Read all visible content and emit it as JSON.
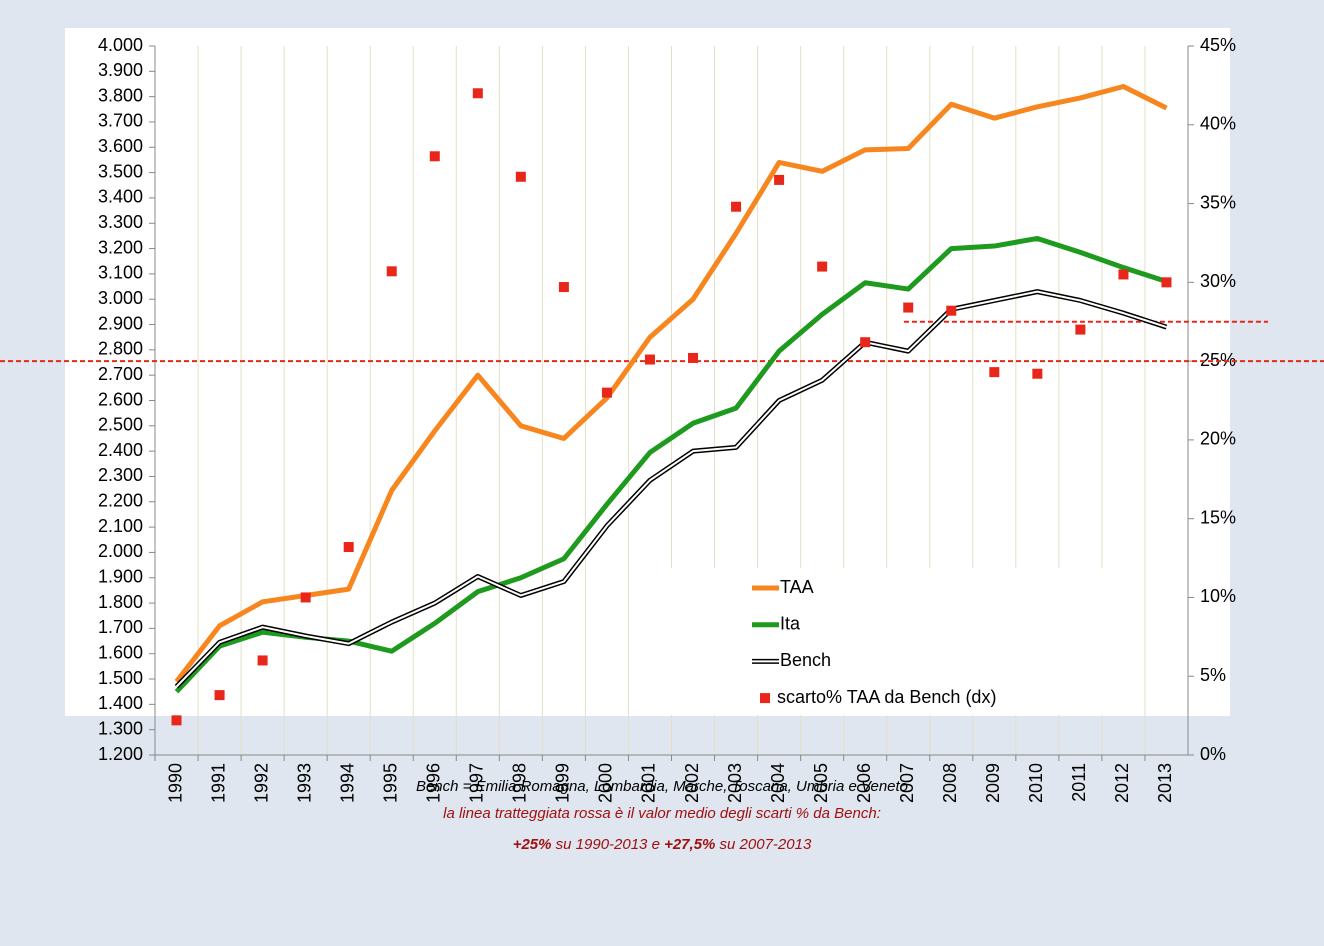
{
  "chart_data": {
    "type": "line",
    "categories": [
      "1990",
      "1991",
      "1992",
      "1993",
      "1994",
      "1995",
      "1996",
      "1997",
      "1998",
      "1999",
      "2000",
      "2001",
      "2002",
      "2003",
      "2004",
      "2005",
      "2006",
      "2007",
      "2008",
      "2009",
      "2010",
      "2011",
      "2012",
      "2013"
    ],
    "series": [
      {
        "name": "TAA",
        "color": "#f7861e",
        "values": [
          1490,
          1710,
          1805,
          1830,
          1855,
          2245,
          2480,
          2700,
          2500,
          2450,
          2610,
          2850,
          3000,
          3260,
          3540,
          3505,
          3590,
          3595,
          3770,
          3715,
          3760,
          3795,
          3840,
          3755
        ]
      },
      {
        "name": "Ita",
        "color": "#1e9a1e",
        "values": [
          1450,
          1630,
          1685,
          1665,
          1650,
          1610,
          1720,
          1845,
          1900,
          1975,
          2190,
          2395,
          2510,
          2570,
          2795,
          2940,
          3065,
          3040,
          3200,
          3210,
          3240,
          3185,
          3125,
          3070
        ]
      },
      {
        "name": "Bench",
        "color": "#000000",
        "values": [
          1470,
          1645,
          1705,
          1670,
          1640,
          1725,
          1800,
          1905,
          1830,
          1885,
          2105,
          2285,
          2400,
          2415,
          2600,
          2680,
          2830,
          2795,
          2960,
          2995,
          3030,
          2995,
          2945,
          2890
        ]
      },
      {
        "name": "scarto% TAA da Bench (dx)",
        "color": "#e8261a",
        "axis": "y2",
        "marker": "square",
        "values": [
          2.2,
          3.8,
          6.0,
          10.0,
          13.2,
          30.7,
          38.0,
          42.0,
          36.7,
          29.7,
          23.0,
          25.1,
          25.2,
          34.8,
          36.5,
          31.0,
          26.2,
          28.4,
          28.2,
          24.3,
          24.2,
          27.0,
          30.5,
          30.0
        ]
      }
    ],
    "mean_lines": [
      {
        "value": 25,
        "range": [
          "1990",
          "2013"
        ],
        "color": "#e8261a"
      },
      {
        "value": 27.5,
        "range": [
          "2007",
          "2013"
        ],
        "color": "#e8261a"
      }
    ],
    "ylim": [
      1200,
      4000
    ],
    "yticks": [
      {
        "value": 1200,
        "label": "1.200"
      },
      {
        "value": 1300,
        "label": "1.300"
      },
      {
        "value": 1400,
        "label": "1.400"
      },
      {
        "value": 1500,
        "label": "1.500"
      },
      {
        "value": 1600,
        "label": "1.600"
      },
      {
        "value": 1700,
        "label": "1.700"
      },
      {
        "value": 1800,
        "label": "1.800"
      },
      {
        "value": 1900,
        "label": "1.900"
      },
      {
        "value": 2000,
        "label": "2.000"
      },
      {
        "value": 2100,
        "label": "2.100"
      },
      {
        "value": 2200,
        "label": "2.200"
      },
      {
        "value": 2300,
        "label": "2.300"
      },
      {
        "value": 2400,
        "label": "2.400"
      },
      {
        "value": 2500,
        "label": "2.500"
      },
      {
        "value": 2600,
        "label": "2.600"
      },
      {
        "value": 2700,
        "label": "2.700"
      },
      {
        "value": 2800,
        "label": "2.800"
      },
      {
        "value": 2900,
        "label": "2.900"
      },
      {
        "value": 3000,
        "label": "3.000"
      },
      {
        "value": 3100,
        "label": "3.100"
      },
      {
        "value": 3200,
        "label": "3.200"
      },
      {
        "value": 3300,
        "label": "3.300"
      },
      {
        "value": 3400,
        "label": "3.400"
      },
      {
        "value": 3500,
        "label": "3.500"
      },
      {
        "value": 3600,
        "label": "3.600"
      },
      {
        "value": 3700,
        "label": "3.700"
      },
      {
        "value": 3800,
        "label": "3.800"
      },
      {
        "value": 3900,
        "label": "3.900"
      },
      {
        "value": 4000,
        "label": "4.000"
      }
    ],
    "y2lim": [
      0,
      45
    ],
    "y2ticks": [
      {
        "value": 0,
        "label": "0%"
      },
      {
        "value": 5,
        "label": "5%"
      },
      {
        "value": 10,
        "label": "10%"
      },
      {
        "value": 15,
        "label": "15%"
      },
      {
        "value": 20,
        "label": "20%"
      },
      {
        "value": 25,
        "label": "25%"
      },
      {
        "value": 30,
        "label": "30%"
      },
      {
        "value": 35,
        "label": "35%"
      },
      {
        "value": 40,
        "label": "40%"
      },
      {
        "value": 45,
        "label": "45%"
      }
    ],
    "grid": "x",
    "notes": [
      {
        "color": "#000000",
        "parts": [
          {
            "text": "Bench = Emilia Romagna, Lombardia, Marche, Toscana, Umbria e Veneto",
            "bold": false
          }
        ]
      },
      {
        "color": "#a01010",
        "parts": [
          {
            "text": "la linea tratteggiata rossa è il valor medio degli scarti % da Bench:",
            "bold": false
          }
        ]
      },
      {
        "color": "#a01010",
        "parts": [
          {
            "text": "+25%",
            "bold": true
          },
          {
            "text": " su 1990-2013 e ",
            "bold": false
          },
          {
            "text": "+27,5%",
            "bold": true
          },
          {
            "text": " su 2007-2013",
            "bold": false
          }
        ]
      }
    ]
  }
}
